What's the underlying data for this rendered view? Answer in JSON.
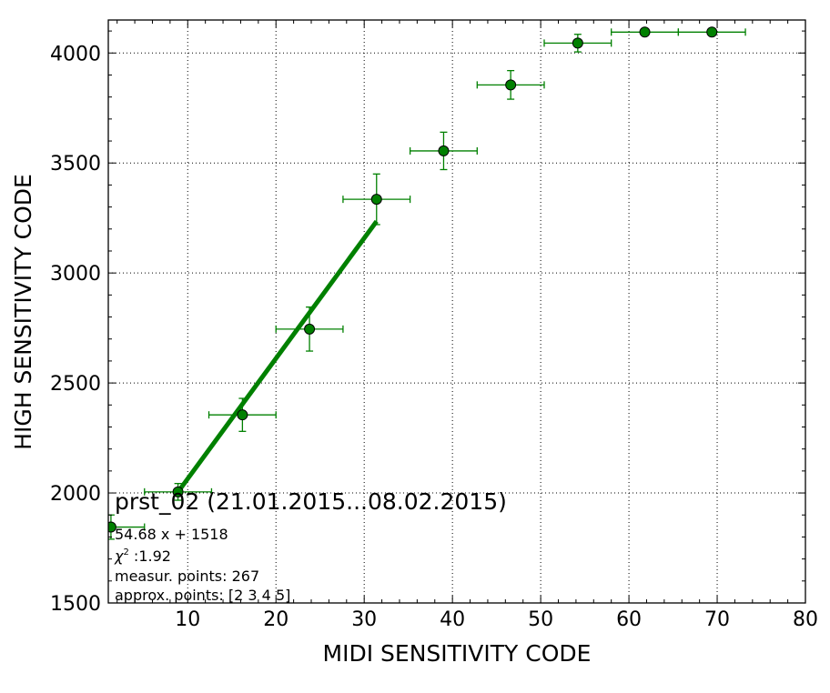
{
  "chart_data": {
    "type": "scatter",
    "xlabel": "MIDI SENSITIVITY CODE",
    "ylabel": "HIGH SENSITIVITY CODE",
    "xlim": [
      1,
      80
    ],
    "ylim": [
      1500,
      4150
    ],
    "x_ticks": [
      10,
      20,
      30,
      40,
      50,
      60,
      70,
      80
    ],
    "y_ticks": [
      1500,
      2000,
      2500,
      3000,
      3500,
      4000
    ],
    "x_minor_step": 2,
    "y_minor_step": 100,
    "grid": true,
    "colors": {
      "points": "#008000",
      "edge": "#000000",
      "fit": "#008000",
      "grid": "#000000"
    },
    "points": [
      {
        "x": 1.3,
        "y": 1845,
        "xerr": 3.8,
        "yerr": 55
      },
      {
        "x": 8.9,
        "y": 2005,
        "xerr": 3.8,
        "yerr": 38
      },
      {
        "x": 16.2,
        "y": 2355,
        "xerr": 3.8,
        "yerr": 75
      },
      {
        "x": 23.8,
        "y": 2745,
        "xerr": 3.8,
        "yerr": 100
      },
      {
        "x": 31.4,
        "y": 3335,
        "xerr": 3.8,
        "yerr": 115
      },
      {
        "x": 39.0,
        "y": 3555,
        "xerr": 3.8,
        "yerr": 85
      },
      {
        "x": 46.6,
        "y": 3855,
        "xerr": 3.8,
        "yerr": 65
      },
      {
        "x": 54.2,
        "y": 4045,
        "xerr": 3.8,
        "yerr": 40
      },
      {
        "x": 61.8,
        "y": 4095,
        "xerr": 3.8,
        "yerr": 0
      },
      {
        "x": 69.4,
        "y": 4095,
        "xerr": 3.8,
        "yerr": 0
      }
    ],
    "fit": {
      "slope": 54.68,
      "intercept": 1518,
      "x_range": [
        8.9,
        31.4
      ]
    },
    "annotations": {
      "title": "prst_02 (21.01.2015...08.02.2015)",
      "equation": "54.68 x + 1518",
      "chi2_symbol": "χ",
      "chi2_exponent": "2",
      "chi2_value": " :1.92",
      "measur_points": "measur. points: 267",
      "approx_points": "approx. points: [2 3 4 5]"
    }
  }
}
